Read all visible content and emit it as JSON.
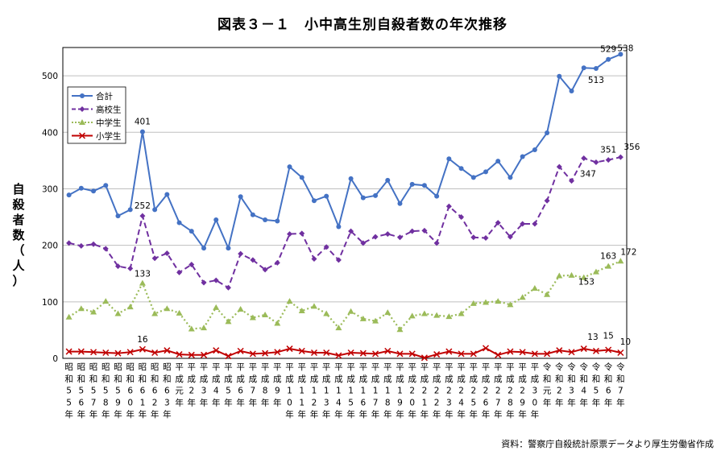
{
  "chart_data": {
    "type": "line",
    "title": "図表３－１　小中高生別自殺者数の年次推移",
    "ylabel": "自殺者数（人）",
    "source": "資料：警察庁自殺統計原票データより厚生労働省作成",
    "ylim": [
      0,
      550
    ],
    "yticks": [
      0,
      100,
      200,
      300,
      400,
      500
    ],
    "legend_position": "top-left",
    "grid": true,
    "categories": [
      "昭和55年",
      "昭和56年",
      "昭和57年",
      "昭和58年",
      "昭和59年",
      "昭和60年",
      "昭和61年",
      "昭和62年",
      "昭和63年",
      "平成元年",
      "平成2年",
      "平成3年",
      "平成4年",
      "平成5年",
      "平成6年",
      "平成7年",
      "平成8年",
      "平成9年",
      "平成10年",
      "平成11年",
      "平成12年",
      "平成13年",
      "平成14年",
      "平成15年",
      "平成16年",
      "平成17年",
      "平成18年",
      "平成19年",
      "平成20年",
      "平成21年",
      "平成22年",
      "平成23年",
      "平成24年",
      "平成25年",
      "平成26年",
      "平成27年",
      "平成28年",
      "平成29年",
      "平成30年",
      "令和元年",
      "令和2年",
      "令和3年",
      "令和4年",
      "令和5年",
      "令和6年",
      "令和7年"
    ],
    "series": [
      {
        "name": "合計",
        "color": "#4472c4",
        "style": "solid",
        "marker": "circle",
        "values": [
          289,
          301,
          296,
          306,
          252,
          263,
          401,
          263,
          290,
          240,
          225,
          195,
          245,
          195,
          286,
          254,
          245,
          243,
          339,
          320,
          279,
          287,
          233,
          318,
          284,
          288,
          315,
          274,
          308,
          306,
          287,
          353,
          336,
          320,
          330,
          349,
          320,
          357,
          369,
          399,
          499,
          473,
          514,
          513,
          529,
          538
        ]
      },
      {
        "name": "高校生",
        "color": "#7030a0",
        "style": "dashed",
        "marker": "diamond",
        "values": [
          204,
          199,
          202,
          194,
          163,
          159,
          252,
          177,
          186,
          152,
          166,
          134,
          138,
          125,
          185,
          174,
          157,
          169,
          220,
          221,
          176,
          197,
          174,
          225,
          204,
          215,
          220,
          214,
          225,
          226,
          204,
          269,
          250,
          214,
          213,
          240,
          215,
          238,
          238,
          279,
          339,
          314,
          354,
          347,
          351,
          356
        ]
      },
      {
        "name": "中学生",
        "color": "#9bbb59",
        "style": "dotted",
        "marker": "triangle",
        "values": [
          73,
          88,
          82,
          101,
          79,
          91,
          133,
          79,
          88,
          80,
          52,
          54,
          90,
          65,
          87,
          72,
          77,
          62,
          101,
          84,
          92,
          79,
          54,
          83,
          70,
          66,
          81,
          51,
          75,
          79,
          76,
          74,
          79,
          97,
          99,
          101,
          95,
          108,
          124,
          113,
          146,
          147,
          143,
          153,
          163,
          172
        ]
      },
      {
        "name": "小学生",
        "color": "#c00000",
        "style": "solid",
        "marker": "x",
        "values": [
          12,
          12,
          11,
          10,
          9,
          11,
          16,
          10,
          14,
          7,
          6,
          6,
          14,
          4,
          13,
          8,
          9,
          11,
          17,
          13,
          10,
          10,
          5,
          10,
          9,
          8,
          13,
          8,
          8,
          1,
          7,
          12,
          8,
          8,
          18,
          6,
          12,
          11,
          8,
          8,
          14,
          11,
          17,
          13,
          15,
          10
        ]
      }
    ],
    "data_labels": [
      {
        "series": 0,
        "index": 6,
        "text": "401"
      },
      {
        "series": 0,
        "index": 43,
        "text": "513"
      },
      {
        "series": 0,
        "index": 44,
        "text": "529"
      },
      {
        "series": 0,
        "index": 45,
        "text": "538"
      },
      {
        "series": 1,
        "index": 6,
        "text": "252"
      },
      {
        "series": 1,
        "index": 43,
        "text": "347"
      },
      {
        "series": 1,
        "index": 44,
        "text": "351"
      },
      {
        "series": 1,
        "index": 45,
        "text": "356"
      },
      {
        "series": 2,
        "index": 6,
        "text": "133"
      },
      {
        "series": 2,
        "index": 43,
        "text": "153"
      },
      {
        "series": 2,
        "index": 44,
        "text": "163"
      },
      {
        "series": 2,
        "index": 45,
        "text": "172"
      },
      {
        "series": 3,
        "index": 6,
        "text": "16"
      },
      {
        "series": 3,
        "index": 43,
        "text": "13"
      },
      {
        "series": 3,
        "index": 44,
        "text": "15"
      },
      {
        "series": 3,
        "index": 45,
        "text": "10"
      }
    ]
  }
}
